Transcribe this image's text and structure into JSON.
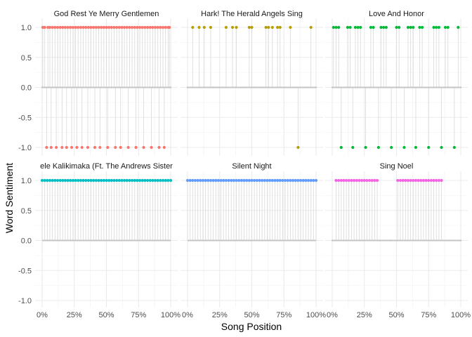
{
  "chart_data": {
    "type": "lollipop-faceted",
    "xlabel": "Song Position",
    "ylabel": "Word Sentiment",
    "x_ticks": [
      "0%",
      "25%",
      "50%",
      "75%",
      "100%"
    ],
    "y_ticks": [
      "1.0",
      "0.5",
      "0.0",
      "-0.5",
      "-1.0"
    ],
    "xlim": [
      0,
      1
    ],
    "ylim": [
      -1.1,
      1.1
    ],
    "grid": true,
    "panels": [
      {
        "title": "God Rest Ye Merry Gentlemen",
        "color": "#F8766D",
        "points": [
          {
            "x": 0.0,
            "y": 0
          },
          {
            "x": 0.005,
            "y": 1
          },
          {
            "x": 0.02,
            "y": 1
          },
          {
            "x": 0.035,
            "y": -1
          },
          {
            "x": 0.045,
            "y": 1
          },
          {
            "x": 0.06,
            "y": 1
          },
          {
            "x": 0.07,
            "y": -1
          },
          {
            "x": 0.08,
            "y": 1
          },
          {
            "x": 0.1,
            "y": 1
          },
          {
            "x": 0.11,
            "y": -1
          },
          {
            "x": 0.12,
            "y": 1
          },
          {
            "x": 0.14,
            "y": 1
          },
          {
            "x": 0.155,
            "y": -1
          },
          {
            "x": 0.16,
            "y": 1
          },
          {
            "x": 0.18,
            "y": 1
          },
          {
            "x": 0.19,
            "y": -1
          },
          {
            "x": 0.2,
            "y": 1
          },
          {
            "x": 0.22,
            "y": 1
          },
          {
            "x": 0.23,
            "y": -1
          },
          {
            "x": 0.24,
            "y": 1
          },
          {
            "x": 0.26,
            "y": 1
          },
          {
            "x": 0.27,
            "y": -1
          },
          {
            "x": 0.28,
            "y": 1
          },
          {
            "x": 0.3,
            "y": 1
          },
          {
            "x": 0.31,
            "y": -1
          },
          {
            "x": 0.32,
            "y": 1
          },
          {
            "x": 0.34,
            "y": 1
          },
          {
            "x": 0.355,
            "y": -1
          },
          {
            "x": 0.36,
            "y": 1
          },
          {
            "x": 0.38,
            "y": 1
          },
          {
            "x": 0.4,
            "y": 1
          },
          {
            "x": 0.41,
            "y": -1
          },
          {
            "x": 0.42,
            "y": 1
          },
          {
            "x": 0.44,
            "y": 1
          },
          {
            "x": 0.45,
            "y": -1
          },
          {
            "x": 0.46,
            "y": 1
          },
          {
            "x": 0.48,
            "y": 1
          },
          {
            "x": 0.5,
            "y": 1
          },
          {
            "x": 0.51,
            "y": -1
          },
          {
            "x": 0.52,
            "y": 1
          },
          {
            "x": 0.54,
            "y": 1
          },
          {
            "x": 0.56,
            "y": 1
          },
          {
            "x": 0.57,
            "y": -1
          },
          {
            "x": 0.58,
            "y": 1
          },
          {
            "x": 0.6,
            "y": 1
          },
          {
            "x": 0.61,
            "y": -1
          },
          {
            "x": 0.62,
            "y": 1
          },
          {
            "x": 0.64,
            "y": 1
          },
          {
            "x": 0.66,
            "y": 1
          },
          {
            "x": 0.67,
            "y": -1
          },
          {
            "x": 0.68,
            "y": 1
          },
          {
            "x": 0.7,
            "y": 1
          },
          {
            "x": 0.72,
            "y": 1
          },
          {
            "x": 0.73,
            "y": -1
          },
          {
            "x": 0.74,
            "y": 1
          },
          {
            "x": 0.76,
            "y": 1
          },
          {
            "x": 0.78,
            "y": 1
          },
          {
            "x": 0.79,
            "y": -1
          },
          {
            "x": 0.8,
            "y": 1
          },
          {
            "x": 0.82,
            "y": 1
          },
          {
            "x": 0.84,
            "y": 1
          },
          {
            "x": 0.85,
            "y": -1
          },
          {
            "x": 0.86,
            "y": 1
          },
          {
            "x": 0.88,
            "y": 1
          },
          {
            "x": 0.9,
            "y": 1
          },
          {
            "x": 0.91,
            "y": -1
          },
          {
            "x": 0.92,
            "y": 1
          },
          {
            "x": 0.94,
            "y": 1
          },
          {
            "x": 0.95,
            "y": -1
          },
          {
            "x": 0.96,
            "y": 1
          },
          {
            "x": 0.98,
            "y": 1
          },
          {
            "x": 0.99,
            "y": 1
          },
          {
            "x": 1.0,
            "y": 0
          }
        ]
      },
      {
        "title": "Hark! The Herald Angels Sing",
        "color": "#B79F00",
        "points": [
          {
            "x": 0.0,
            "y": 0
          },
          {
            "x": 0.04,
            "y": 1
          },
          {
            "x": 0.09,
            "y": 1
          },
          {
            "x": 0.13,
            "y": 1
          },
          {
            "x": 0.18,
            "y": 1
          },
          {
            "x": 0.2,
            "y": 0
          },
          {
            "x": 0.3,
            "y": 1
          },
          {
            "x": 0.35,
            "y": 1
          },
          {
            "x": 0.38,
            "y": 1
          },
          {
            "x": 0.48,
            "y": 1
          },
          {
            "x": 0.5,
            "y": 1
          },
          {
            "x": 0.52,
            "y": 0
          },
          {
            "x": 0.61,
            "y": 1
          },
          {
            "x": 0.63,
            "y": 1
          },
          {
            "x": 0.66,
            "y": 1
          },
          {
            "x": 0.7,
            "y": 1
          },
          {
            "x": 0.72,
            "y": 1
          },
          {
            "x": 0.8,
            "y": 1
          },
          {
            "x": 0.86,
            "y": -1
          },
          {
            "x": 0.96,
            "y": 1
          },
          {
            "x": 1.0,
            "y": 0
          }
        ]
      },
      {
        "title": "Love And Honor",
        "color": "#00BA38",
        "points": [
          {
            "x": 0.0,
            "y": 0
          },
          {
            "x": 0.01,
            "y": 1
          },
          {
            "x": 0.03,
            "y": 1
          },
          {
            "x": 0.05,
            "y": 1
          },
          {
            "x": 0.07,
            "y": -1
          },
          {
            "x": 0.12,
            "y": 1
          },
          {
            "x": 0.14,
            "y": 1
          },
          {
            "x": 0.16,
            "y": -1
          },
          {
            "x": 0.18,
            "y": 1
          },
          {
            "x": 0.2,
            "y": 1
          },
          {
            "x": 0.22,
            "y": 1
          },
          {
            "x": 0.26,
            "y": -1
          },
          {
            "x": 0.3,
            "y": 1
          },
          {
            "x": 0.32,
            "y": 1
          },
          {
            "x": 0.36,
            "y": -1
          },
          {
            "x": 0.38,
            "y": 1
          },
          {
            "x": 0.4,
            "y": 1
          },
          {
            "x": 0.42,
            "y": 1
          },
          {
            "x": 0.46,
            "y": -1
          },
          {
            "x": 0.5,
            "y": 1
          },
          {
            "x": 0.52,
            "y": 1
          },
          {
            "x": 0.56,
            "y": -1
          },
          {
            "x": 0.59,
            "y": 1
          },
          {
            "x": 0.61,
            "y": 1
          },
          {
            "x": 0.63,
            "y": 1
          },
          {
            "x": 0.65,
            "y": -1
          },
          {
            "x": 0.68,
            "y": 1
          },
          {
            "x": 0.7,
            "y": 1
          },
          {
            "x": 0.75,
            "y": -1
          },
          {
            "x": 0.79,
            "y": 1
          },
          {
            "x": 0.81,
            "y": 1
          },
          {
            "x": 0.83,
            "y": 1
          },
          {
            "x": 0.85,
            "y": -1
          },
          {
            "x": 0.88,
            "y": 1
          },
          {
            "x": 0.9,
            "y": 1
          },
          {
            "x": 0.95,
            "y": -1
          },
          {
            "x": 0.98,
            "y": 1
          },
          {
            "x": 1.0,
            "y": 0
          }
        ]
      },
      {
        "title": "ele Kalikimaka (Ft. The Andrews Sister",
        "color": "#00BFC4",
        "points": [
          {
            "x": 0.0,
            "y": 1
          },
          {
            "x": 0.02,
            "y": 1
          },
          {
            "x": 0.04,
            "y": 1
          },
          {
            "x": 0.06,
            "y": 1
          },
          {
            "x": 0.08,
            "y": 1
          },
          {
            "x": 0.1,
            "y": 1
          },
          {
            "x": 0.12,
            "y": 1
          },
          {
            "x": 0.14,
            "y": 1
          },
          {
            "x": 0.16,
            "y": 1
          },
          {
            "x": 0.18,
            "y": 1
          },
          {
            "x": 0.2,
            "y": 1
          },
          {
            "x": 0.22,
            "y": 1
          },
          {
            "x": 0.24,
            "y": 1
          },
          {
            "x": 0.26,
            "y": 1
          },
          {
            "x": 0.28,
            "y": 1
          },
          {
            "x": 0.3,
            "y": 1
          },
          {
            "x": 0.32,
            "y": 1
          },
          {
            "x": 0.34,
            "y": 1
          },
          {
            "x": 0.36,
            "y": 1
          },
          {
            "x": 0.38,
            "y": 1
          },
          {
            "x": 0.4,
            "y": 1
          },
          {
            "x": 0.42,
            "y": 1
          },
          {
            "x": 0.44,
            "y": 1
          },
          {
            "x": 0.46,
            "y": 1
          },
          {
            "x": 0.48,
            "y": 1
          },
          {
            "x": 0.5,
            "y": 1
          },
          {
            "x": 0.52,
            "y": 1
          },
          {
            "x": 0.54,
            "y": 1
          },
          {
            "x": 0.56,
            "y": 1
          },
          {
            "x": 0.58,
            "y": 1
          },
          {
            "x": 0.6,
            "y": 1
          },
          {
            "x": 0.62,
            "y": 1
          },
          {
            "x": 0.64,
            "y": 1
          },
          {
            "x": 0.66,
            "y": 1
          },
          {
            "x": 0.68,
            "y": 1
          },
          {
            "x": 0.7,
            "y": 1
          },
          {
            "x": 0.72,
            "y": 1
          },
          {
            "x": 0.74,
            "y": 1
          },
          {
            "x": 0.76,
            "y": 1
          },
          {
            "x": 0.78,
            "y": 1
          },
          {
            "x": 0.8,
            "y": 1
          },
          {
            "x": 0.82,
            "y": 1
          },
          {
            "x": 0.84,
            "y": 1
          },
          {
            "x": 0.86,
            "y": 1
          },
          {
            "x": 0.88,
            "y": 1
          },
          {
            "x": 0.9,
            "y": 1
          },
          {
            "x": 0.92,
            "y": 1
          },
          {
            "x": 0.94,
            "y": 1
          },
          {
            "x": 0.96,
            "y": 1
          },
          {
            "x": 0.98,
            "y": 1
          },
          {
            "x": 1.0,
            "y": 1
          }
        ]
      },
      {
        "title": "Silent Night",
        "color": "#619CFF",
        "points": [
          {
            "x": 0.0,
            "y": 1
          },
          {
            "x": 0.02,
            "y": 1
          },
          {
            "x": 0.04,
            "y": 1
          },
          {
            "x": 0.06,
            "y": 1
          },
          {
            "x": 0.08,
            "y": 1
          },
          {
            "x": 0.1,
            "y": 1
          },
          {
            "x": 0.12,
            "y": 1
          },
          {
            "x": 0.14,
            "y": 1
          },
          {
            "x": 0.16,
            "y": 1
          },
          {
            "x": 0.18,
            "y": 1
          },
          {
            "x": 0.2,
            "y": 1
          },
          {
            "x": 0.22,
            "y": 1
          },
          {
            "x": 0.24,
            "y": 1
          },
          {
            "x": 0.26,
            "y": 1
          },
          {
            "x": 0.28,
            "y": 1
          },
          {
            "x": 0.3,
            "y": 1
          },
          {
            "x": 0.32,
            "y": 1
          },
          {
            "x": 0.34,
            "y": 1
          },
          {
            "x": 0.36,
            "y": 1
          },
          {
            "x": 0.38,
            "y": 1
          },
          {
            "x": 0.4,
            "y": 1
          },
          {
            "x": 0.42,
            "y": 1
          },
          {
            "x": 0.44,
            "y": 1
          },
          {
            "x": 0.46,
            "y": 1
          },
          {
            "x": 0.48,
            "y": 1
          },
          {
            "x": 0.5,
            "y": 1
          },
          {
            "x": 0.52,
            "y": 1
          },
          {
            "x": 0.54,
            "y": 1
          },
          {
            "x": 0.56,
            "y": 1
          },
          {
            "x": 0.58,
            "y": 1
          },
          {
            "x": 0.6,
            "y": 1
          },
          {
            "x": 0.62,
            "y": 1
          },
          {
            "x": 0.64,
            "y": 1
          },
          {
            "x": 0.66,
            "y": 1
          },
          {
            "x": 0.68,
            "y": 1
          },
          {
            "x": 0.7,
            "y": 1
          },
          {
            "x": 0.72,
            "y": 1
          },
          {
            "x": 0.74,
            "y": 1
          },
          {
            "x": 0.76,
            "y": 1
          },
          {
            "x": 0.78,
            "y": 1
          },
          {
            "x": 0.8,
            "y": 1
          },
          {
            "x": 0.82,
            "y": 1
          },
          {
            "x": 0.84,
            "y": 1
          },
          {
            "x": 0.86,
            "y": 1
          },
          {
            "x": 0.88,
            "y": 1
          },
          {
            "x": 0.9,
            "y": 1
          },
          {
            "x": 0.92,
            "y": 1
          },
          {
            "x": 0.94,
            "y": 1
          },
          {
            "x": 0.96,
            "y": 1
          },
          {
            "x": 0.98,
            "y": 1
          },
          {
            "x": 1.0,
            "y": 1
          }
        ]
      },
      {
        "title": "Sing Noel",
        "color": "#F564E3",
        "points": [
          {
            "x": 0.0,
            "y": 0
          },
          {
            "x": 0.03,
            "y": 1
          },
          {
            "x": 0.05,
            "y": 1
          },
          {
            "x": 0.07,
            "y": 1
          },
          {
            "x": 0.09,
            "y": 1
          },
          {
            "x": 0.11,
            "y": 1
          },
          {
            "x": 0.13,
            "y": 1
          },
          {
            "x": 0.15,
            "y": 1
          },
          {
            "x": 0.17,
            "y": 1
          },
          {
            "x": 0.19,
            "y": 1
          },
          {
            "x": 0.21,
            "y": 1
          },
          {
            "x": 0.23,
            "y": 1
          },
          {
            "x": 0.25,
            "y": 1
          },
          {
            "x": 0.27,
            "y": 1
          },
          {
            "x": 0.29,
            "y": 1
          },
          {
            "x": 0.31,
            "y": 1
          },
          {
            "x": 0.33,
            "y": 1
          },
          {
            "x": 0.35,
            "y": 1
          },
          {
            "x": 0.37,
            "y": 0
          },
          {
            "x": 0.45,
            "y": 0
          },
          {
            "x": 0.51,
            "y": 1
          },
          {
            "x": 0.53,
            "y": 1
          },
          {
            "x": 0.55,
            "y": 1
          },
          {
            "x": 0.57,
            "y": 1
          },
          {
            "x": 0.59,
            "y": 1
          },
          {
            "x": 0.61,
            "y": 1
          },
          {
            "x": 0.63,
            "y": 1
          },
          {
            "x": 0.65,
            "y": 1
          },
          {
            "x": 0.67,
            "y": 1
          },
          {
            "x": 0.69,
            "y": 1
          },
          {
            "x": 0.71,
            "y": 1
          },
          {
            "x": 0.73,
            "y": 1
          },
          {
            "x": 0.75,
            "y": 1
          },
          {
            "x": 0.77,
            "y": 1
          },
          {
            "x": 0.79,
            "y": 1
          },
          {
            "x": 0.81,
            "y": 1
          },
          {
            "x": 0.83,
            "y": 1
          },
          {
            "x": 0.85,
            "y": 1
          },
          {
            "x": 1.0,
            "y": 0
          }
        ]
      }
    ]
  }
}
